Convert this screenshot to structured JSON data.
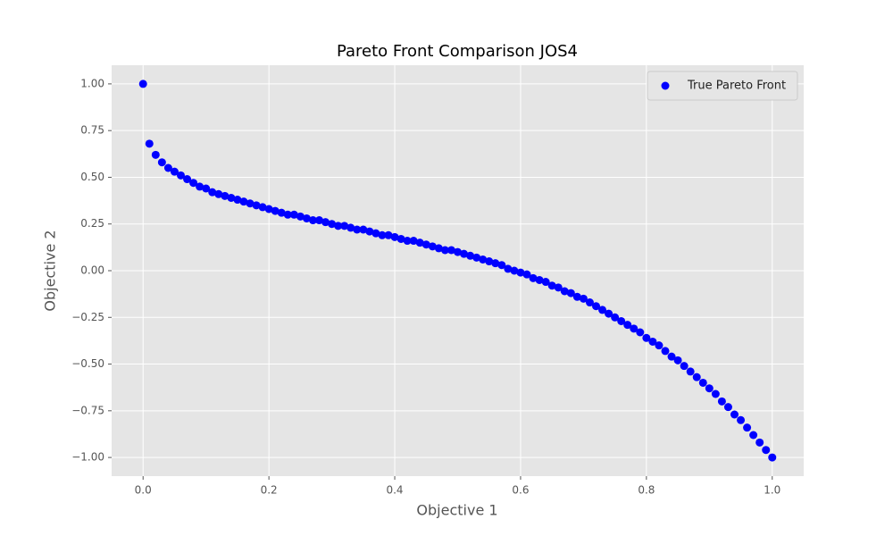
{
  "chart_data": {
    "type": "scatter",
    "title": "Pareto Front Comparison JOS4",
    "xlabel": "Objective 1",
    "ylabel": "Objective 2",
    "xlim": [
      -0.05,
      1.05
    ],
    "ylim": [
      -1.1,
      1.1
    ],
    "xticks": [
      {
        "value": 0,
        "label": "0.0"
      },
      0.2,
      0.4,
      0.6,
      0.8,
      {
        "value": 1,
        "label": "1.0"
      }
    ],
    "yticks": [
      {
        "value": -1,
        "label": "−1.00"
      },
      {
        "value": -0.75,
        "label": "−0.75"
      },
      {
        "value": -0.5,
        "label": "−0.50"
      },
      {
        "value": -0.25,
        "label": "−0.25"
      },
      {
        "value": 0,
        "label": "0.00"
      },
      0.25,
      {
        "value": 0.5,
        "label": "0.50"
      },
      0.75,
      {
        "value": 1,
        "label": "1.00"
      }
    ],
    "grid": true,
    "legend": "upper right",
    "series": [
      {
        "name": "True Pareto Front",
        "color": "#0000ff",
        "x": [
          0,
          0.01,
          0.02,
          0.03,
          0.04,
          0.05,
          0.06,
          0.07,
          0.08,
          0.09,
          0.1,
          0.11,
          0.12,
          0.13,
          0.14,
          0.15,
          0.16,
          0.17,
          0.18,
          0.19,
          0.2,
          0.21,
          0.22,
          0.23,
          0.24,
          0.25,
          0.26,
          0.27,
          0.28,
          0.29,
          0.3,
          0.31,
          0.32,
          0.33,
          0.34,
          0.35,
          0.36,
          0.37,
          0.38,
          0.39,
          0.4,
          0.41,
          0.42,
          0.43,
          0.44,
          0.45,
          0.46,
          0.47,
          0.48,
          0.49,
          0.5,
          0.51,
          0.52,
          0.53,
          0.54,
          0.55,
          0.56,
          0.57,
          0.58,
          0.59,
          0.6,
          0.61,
          0.62,
          0.63,
          0.64,
          0.65,
          0.66,
          0.67,
          0.68,
          0.69,
          0.7,
          0.71,
          0.72,
          0.73,
          0.74,
          0.75,
          0.76,
          0.77,
          0.78,
          0.79,
          0.8,
          0.81,
          0.82,
          0.83,
          0.84,
          0.85,
          0.86,
          0.87,
          0.88,
          0.89,
          0.9,
          0.91,
          0.92,
          0.93,
          0.94,
          0.95,
          0.96,
          0.97,
          0.98,
          0.99,
          1
        ],
        "values": [
          1,
          0.68,
          0.62,
          0.58,
          0.55,
          0.53,
          0.51,
          0.49,
          0.47,
          0.45,
          0.44,
          0.42,
          0.41,
          0.4,
          0.39,
          0.38,
          0.37,
          0.36,
          0.35,
          0.34,
          0.33,
          0.32,
          0.31,
          0.3,
          0.3,
          0.29,
          0.28,
          0.27,
          0.27,
          0.26,
          0.25,
          0.24,
          0.24,
          0.23,
          0.22,
          0.22,
          0.21,
          0.2,
          0.19,
          0.19,
          0.18,
          0.17,
          0.16,
          0.16,
          0.15,
          0.14,
          0.13,
          0.12,
          0.11,
          0.11,
          0.1,
          0.09,
          0.08,
          0.07,
          0.06,
          0.05,
          0.04,
          0.03,
          0.01,
          0,
          -0.01,
          -0.02,
          -0.04,
          -0.05,
          -0.06,
          -0.08,
          -0.09,
          -0.11,
          -0.12,
          -0.14,
          -0.15,
          -0.17,
          -0.19,
          -0.21,
          -0.23,
          -0.25,
          -0.27,
          -0.29,
          -0.31,
          -0.33,
          -0.36,
          -0.38,
          -0.4,
          -0.43,
          -0.46,
          -0.48,
          -0.51,
          -0.54,
          -0.57,
          -0.6,
          -0.63,
          -0.66,
          -0.7,
          -0.73,
          -0.77,
          -0.8,
          -0.84,
          -0.88,
          -0.92,
          -0.96,
          -1
        ]
      }
    ]
  }
}
